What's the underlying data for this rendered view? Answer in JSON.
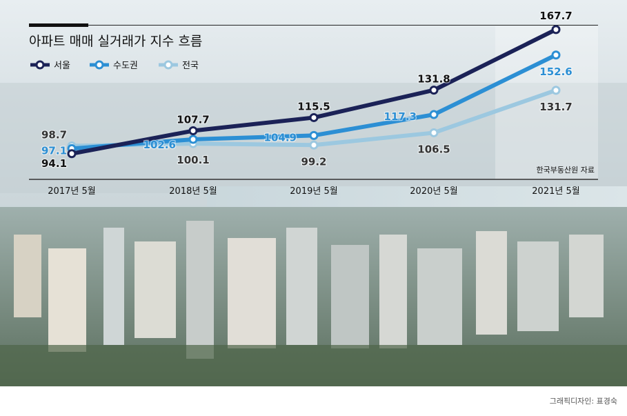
{
  "chart_data": {
    "type": "line",
    "title": "아파트 매매 실거래가 지수 흐름",
    "categories": [
      "2017년 5월",
      "2018년 5월",
      "2019년 5월",
      "2020년 5월",
      "2021년 5월"
    ],
    "series": [
      {
        "name": "서울",
        "color": "#1b2257",
        "values": [
          94.1,
          107.7,
          115.5,
          131.8,
          167.7
        ],
        "labels": [
          "94.1",
          "107.7",
          "115.5",
          "131.8",
          "167.7"
        ]
      },
      {
        "name": "수도권",
        "color": "#2c8fd4",
        "values": [
          97.1,
          102.6,
          104.9,
          117.3,
          152.6
        ],
        "labels": [
          "97.1",
          "102.6",
          "104.9",
          "117.3",
          "152.6"
        ]
      },
      {
        "name": "전국",
        "color": "#9cc8e0",
        "values": [
          98.7,
          100.1,
          99.2,
          106.5,
          131.7
        ],
        "labels": [
          "98.7",
          "100.1",
          "99.2",
          "106.5",
          "131.7"
        ]
      }
    ],
    "ylim": [
      85,
      175
    ],
    "legend_position": "top-left",
    "source": "한국부동산원 자료",
    "highlight_category": "2021년 5월"
  },
  "credit": "그래픽디자인: 표경숙"
}
